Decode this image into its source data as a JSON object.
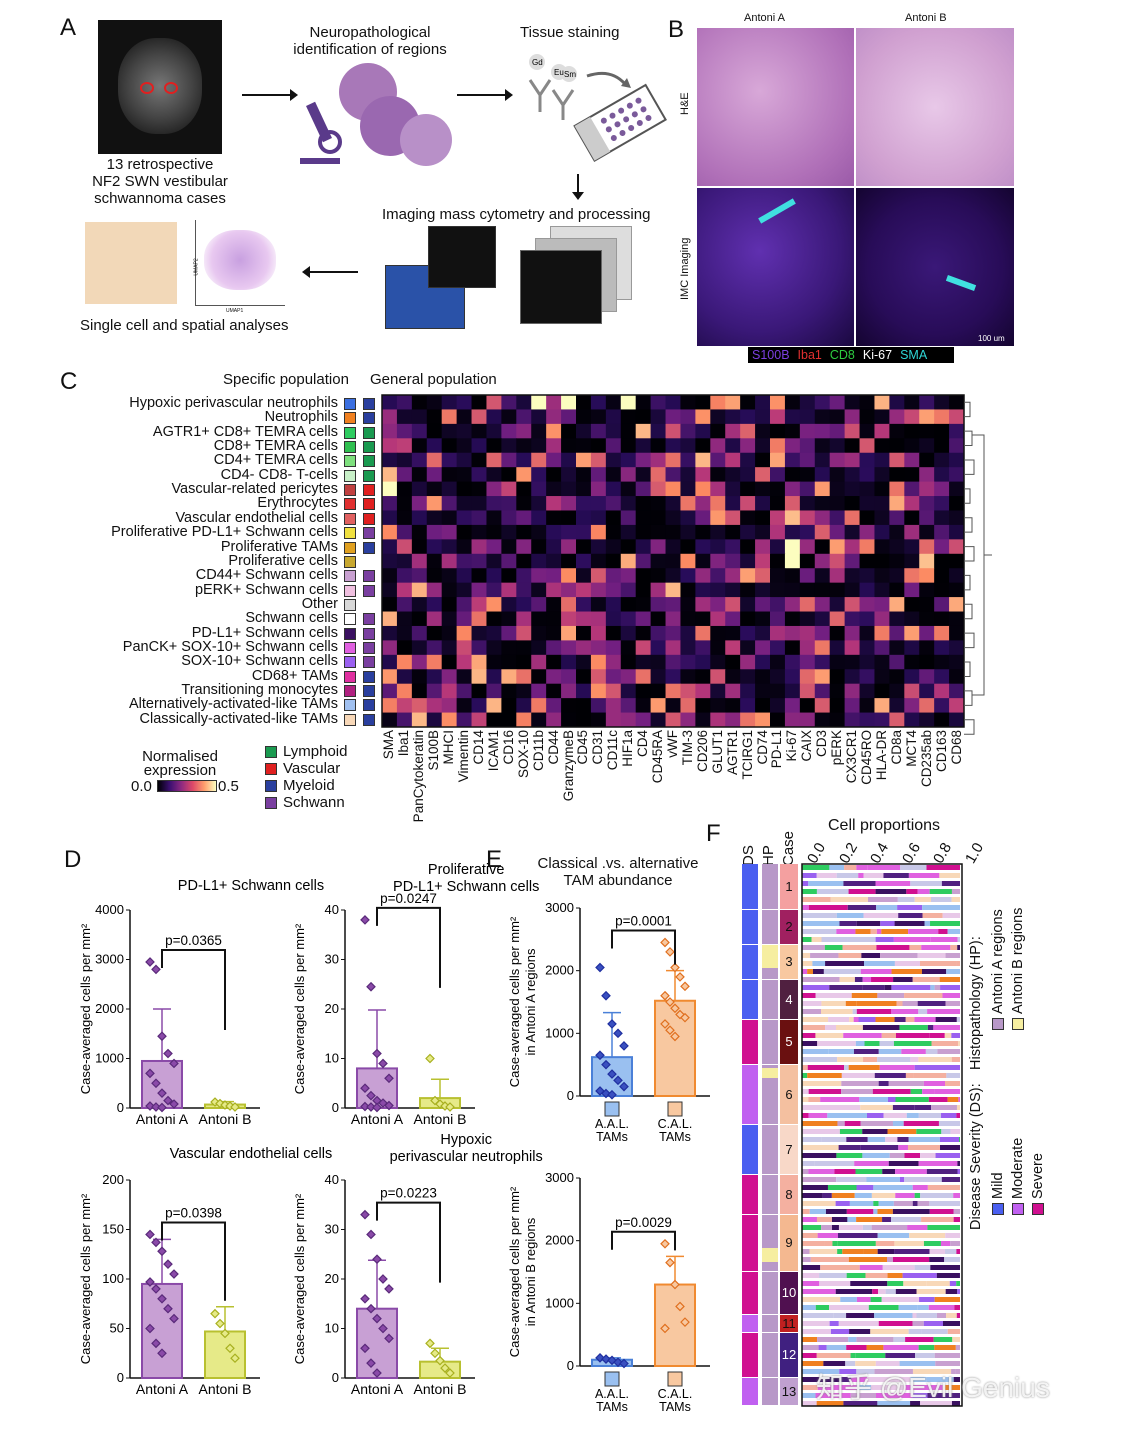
{
  "panels": {
    "A": "A",
    "B": "B",
    "C": "C",
    "D": "D",
    "E": "E",
    "F": "F"
  },
  "panelA": {
    "mri_caption": [
      "13 retrospective",
      "NF2 SWN vestibular",
      "schwannoma cases"
    ],
    "step1": [
      "Neuropathological",
      "identification of regions"
    ],
    "step2": "Tissue staining",
    "step3": "Imaging mass cytometry and processing",
    "step4": "Single cell and spatial analyses",
    "stain_tags": [
      "Gd",
      "Eu",
      "Sm"
    ],
    "umap_axes": {
      "x": "UMAP1",
      "y": "UMAP2"
    }
  },
  "panelB": {
    "col1": "Antoni A",
    "col2": "Antoni B",
    "row1": "H&E",
    "row2": "IMC Imaging",
    "scale": "100 um",
    "legend": [
      {
        "label": "S100B",
        "color": "#7b3fe0"
      },
      {
        "label": "Iba1",
        "color": "#e03030"
      },
      {
        "label": "CD8",
        "color": "#2ecc40"
      },
      {
        "label": "Ki-67",
        "color": "#ffffff"
      },
      {
        "label": "SMA",
        "color": "#2fd5d5"
      }
    ]
  },
  "panelC": {
    "specific_header": "Specific population",
    "general_header": "General population",
    "rows": [
      {
        "label": "Hypoxic perivascular neutrophils",
        "spec": "#3b6fe0",
        "gen": "#2a3f9e"
      },
      {
        "label": "Neutrophils",
        "spec": "#f08020",
        "gen": "#2a3f9e"
      },
      {
        "label": "AGTR1+ CD8+ TEMRA cells",
        "spec": "#2ecc60",
        "gen": "#1a9a50"
      },
      {
        "label": "CD8+ TEMRA cells",
        "spec": "#30c050",
        "gen": "#1a9a50"
      },
      {
        "label": "CD4+ TEMRA cells",
        "spec": "#7ee07e",
        "gen": "#1a9a50"
      },
      {
        "label": "CD4- CD8- T-cells",
        "spec": "#c8f0c8",
        "gen": "#1a9a50"
      },
      {
        "label": "Vascular-related pericytes",
        "spec": "#c04040",
        "gen": "#e02020"
      },
      {
        "label": "Erythrocytes",
        "spec": "#e03030",
        "gen": "#e02020"
      },
      {
        "label": "Vascular endothelial cells",
        "spec": "#e06060",
        "gen": "#e02020"
      },
      {
        "label": "Proliferative PD-L1+ Schwann cells",
        "spec": "#f0e040",
        "gen": "#7a3fa0"
      },
      {
        "label": "Proliferative TAMs",
        "spec": "#e0a020",
        "gen": "#2a3f9e"
      },
      {
        "label": "Proliferative cells",
        "spec": "#c8a830",
        "gen": ""
      },
      {
        "label": "CD44+ Schwann cells",
        "spec": "#c8a0d0",
        "gen": "#7a3fa0"
      },
      {
        "label": "pERK+ Schwann cells",
        "spec": "#f0c0e0",
        "gen": "#7a3fa0"
      },
      {
        "label": "Other",
        "spec": "#d8d8d8",
        "gen": ""
      },
      {
        "label": "Schwann cells",
        "spec": "#ffffff",
        "gen": "#7a3fa0"
      },
      {
        "label": "PD-L1+ Schwann cells",
        "spec": "#3a1060",
        "gen": "#7a3fa0"
      },
      {
        "label": "PanCK+ SOX-10+ Schwann cells",
        "spec": "#e060e0",
        "gen": "#7a3fa0"
      },
      {
        "label": "SOX-10+ Schwann cells",
        "spec": "#9a60f0",
        "gen": "#7a3fa0"
      },
      {
        "label": "CD68+ TAMs",
        "spec": "#e030a0",
        "gen": "#2a3f9e"
      },
      {
        "label": "Transitioning monocytes",
        "spec": "#b02080",
        "gen": "#2a3f9e"
      },
      {
        "label": "Alternatively-activated-like TAMs",
        "spec": "#a0c0f0",
        "gen": "#2a3f9e"
      },
      {
        "label": "Classically-activated-like TAMs",
        "spec": "#f8d8b8",
        "gen": "#2a3f9e"
      }
    ],
    "markers": [
      "SMA",
      "Iba1",
      "PanCytokeratin",
      "S100B",
      "MHCI",
      "Vimentin",
      "CD14",
      "ICAM1",
      "CD16",
      "SOX-10",
      "CD11b",
      "CD44",
      "GranzymeB",
      "CD45",
      "CD31",
      "CD11c",
      "HIF1a",
      "CD4",
      "CD45RA",
      "vWF",
      "TIM-3",
      "CD206",
      "GLUT1",
      "AGTR1",
      "TCIRG1",
      "CD74",
      "PD-L1",
      "Ki-67",
      "CAIX",
      "CD3",
      "pERK",
      "CX3CR1",
      "CD45RO",
      "HLA-DR",
      "CD8a",
      "MCT4",
      "CD235ab",
      "CD163",
      "CD68"
    ],
    "scale_title": [
      "Normalised",
      "expression"
    ],
    "scale_min": "0.0",
    "scale_max": "0.5",
    "general_legend": [
      {
        "label": "Lymphoid",
        "color": "#1a9a50"
      },
      {
        "label": "Vascular",
        "color": "#e02020"
      },
      {
        "label": "Myeloid",
        "color": "#2a3f9e"
      },
      {
        "label": "Schwann",
        "color": "#7a3fa0"
      }
    ]
  },
  "panelD": {
    "ylabel": "Case-averaged cells per mm²",
    "xcats": [
      "Antoni A",
      "Antoni B"
    ],
    "plots": [
      {
        "title": [
          "PD-L1+ Schwann cells"
        ],
        "p": "p=0.0365",
        "yticks": [
          "0",
          "1000",
          "2000",
          "3000",
          "4000"
        ],
        "ymax": 4000,
        "barA": 950,
        "errA": 2000,
        "barB": 70,
        "errB": 130,
        "ptsA": [
          2950,
          2800,
          1450,
          1100,
          900,
          700,
          500,
          300,
          150,
          80,
          40,
          20,
          10
        ],
        "ptsB": [
          120,
          90,
          60,
          40,
          20
        ]
      },
      {
        "title": [
          "Proliferative",
          "PD-L1+ Schwann cells"
        ],
        "p": "p=0.0247",
        "yticks": [
          "0",
          "10",
          "20",
          "30",
          "40"
        ],
        "ymax": 40,
        "barA": 8,
        "errA": 19.8,
        "barB": 2,
        "errB": 5.8,
        "ptsA": [
          38,
          24.5,
          11,
          9,
          6,
          4,
          2.5,
          1.5,
          1,
          0.5,
          0.3,
          0.2,
          0.1
        ],
        "ptsB": [
          10,
          1.5,
          0.8,
          0.4,
          0.2
        ]
      },
      {
        "title": [
          "Vascular endothelial cells"
        ],
        "p": "p=0.0398",
        "yticks": [
          "0",
          "50",
          "100",
          "150",
          "200"
        ],
        "ymax": 200,
        "barA": 95,
        "errA": 140,
        "barB": 47,
        "errB": 72,
        "ptsA": [
          145,
          137,
          128,
          115,
          105,
          97,
          90,
          80,
          70,
          60,
          50,
          35,
          25
        ],
        "ptsB": [
          65,
          55,
          45,
          30,
          20
        ]
      },
      {
        "title": [
          "Hypoxic",
          "perivascular neutrophils"
        ],
        "p": "p=0.0223",
        "yticks": [
          "0",
          "10",
          "20",
          "30",
          "40"
        ],
        "ymax": 40,
        "barA": 14,
        "errA": 23.8,
        "barB": 3.3,
        "errB": 6,
        "ptsA": [
          33,
          29,
          24,
          20,
          18,
          16,
          14,
          12,
          10,
          8,
          6,
          3,
          1
        ],
        "ptsB": [
          7,
          5,
          3.5,
          2,
          1
        ]
      }
    ]
  },
  "panelE": {
    "title": [
      "Classical .vs. alternative",
      "TAM abundance"
    ],
    "xcats": [
      [
        "A.A.L.",
        "TAMs"
      ],
      [
        "C.A.L.",
        "TAMs"
      ]
    ],
    "yticks": [
      "0",
      "1000",
      "2000",
      "3000"
    ],
    "plots": [
      {
        "ylabel": [
          "Case-averaged cells per mm²",
          "in Antoni A regions"
        ],
        "p": "p=0.0001",
        "ymax": 3000,
        "barA": 620,
        "errA": 1330,
        "barB": 1520,
        "errB": 2000,
        "ptsA": [
          2050,
          1600,
          1150,
          1000,
          800,
          650,
          500,
          350,
          250,
          150,
          80,
          40,
          20
        ],
        "ptsB": [
          2450,
          2300,
          2050,
          1900,
          1750,
          1600,
          1500,
          1400,
          1300,
          1250,
          1150,
          1050,
          950
        ]
      },
      {
        "ylabel": [
          "Case-averaged cells per mm²",
          "in Antoni B regions"
        ],
        "p": "p=0.0029",
        "ymax": 3000,
        "barA": 100,
        "errA": 130,
        "barB": 1300,
        "errB": 1750,
        "ptsA": [
          130,
          110,
          90,
          60,
          40
        ],
        "ptsB": [
          1950,
          1650,
          1300,
          950,
          700,
          600
        ]
      }
    ]
  },
  "panelF": {
    "col_ds": "DS",
    "col_hp": "HP",
    "col_case": "Case",
    "title": "Cell proportions",
    "xticks": [
      "0.0",
      "0.2",
      "0.4",
      "0.6",
      "0.8",
      "1.0"
    ],
    "cases": [
      "1",
      "2",
      "3",
      "4",
      "5",
      "6",
      "7",
      "8",
      "9",
      "10",
      "11",
      "12",
      "13"
    ],
    "hp_legend_title": "Histopathology (HP):",
    "hp_legend": [
      {
        "label": "Antoni A regions",
        "color": "#b898c8"
      },
      {
        "label": "Antoni B regions",
        "color": "#f6eea0"
      }
    ],
    "ds_legend_title": "Disease Severity (DS):",
    "ds_legend": [
      {
        "label": "Mild",
        "color": "#4a5ff0"
      },
      {
        "label": "Moderate",
        "color": "#c060f0"
      },
      {
        "label": "Severe",
        "color": "#d01090"
      }
    ]
  },
  "watermark": "知乎 @Evil Genius"
}
